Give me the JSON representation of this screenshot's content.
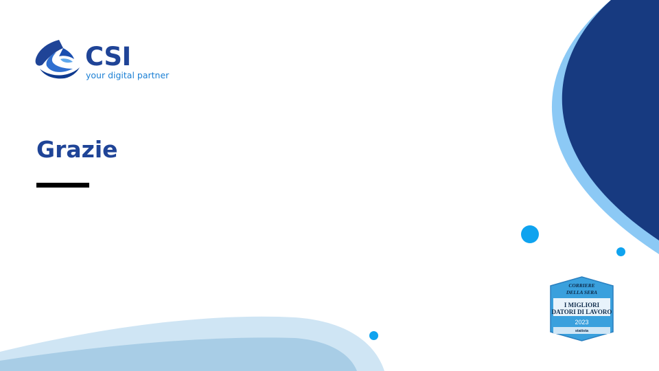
{
  "logo": {
    "name": "CSI",
    "tagline": "your digital partner"
  },
  "slide": {
    "title": "Grazie"
  },
  "badge": {
    "line1": "CORRIERE",
    "line2": "DELLA SERA",
    "line3": "I MIGLIORI",
    "line4": "DATORI DI LAVORO",
    "year": "2023",
    "partner": "statista"
  },
  "colors": {
    "brand_navy": "#1f4497",
    "wave_navy": "#173a80",
    "wave_light": "#8cc9f5",
    "dot_cyan": "#0fa3ef"
  }
}
